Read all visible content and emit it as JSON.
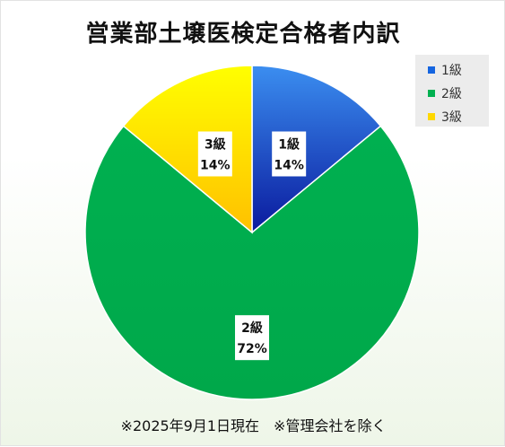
{
  "chart_data": {
    "type": "pie",
    "title": "営業部土壌医検定合格者内訳",
    "slices": [
      {
        "name": "1級",
        "value": 14,
        "label_name": "1級",
        "label_value": "14%",
        "color_light": "#3b8ef0",
        "color_dark": "#0a1a9e"
      },
      {
        "name": "2級",
        "value": 72,
        "label_name": "2級",
        "label_value": "72%",
        "color_light": "#00b050",
        "color_dark": "#00a84a"
      },
      {
        "name": "3級",
        "value": 14,
        "label_name": "3級",
        "label_value": "14%",
        "color_light": "#ffff00",
        "color_dark": "#ffc000"
      }
    ],
    "legend": {
      "position": "top-right",
      "items": [
        {
          "label": "1級",
          "color": "#1565e0"
        },
        {
          "label": "2級",
          "color": "#00b050"
        },
        {
          "label": "3級",
          "color": "#ffd800"
        }
      ]
    },
    "footnote": "※2025年9月1日現在　※管理会社を除く"
  }
}
